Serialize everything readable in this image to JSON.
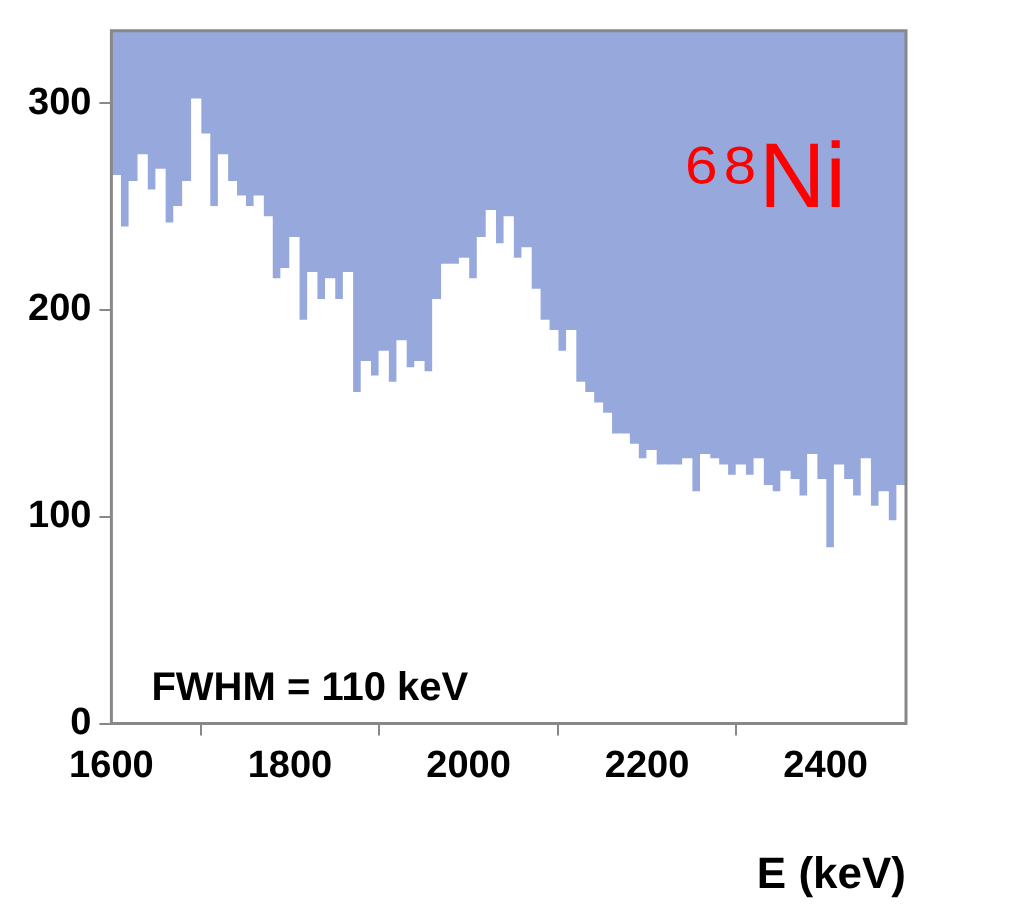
{
  "chart_data": {
    "type": "histogram",
    "bins": [
      1600,
      1610,
      1620,
      1630,
      1640,
      1650,
      1660,
      1670,
      1680,
      1690,
      1700,
      1710,
      1720,
      1730,
      1740,
      1750,
      1760,
      1770,
      1780,
      1790,
      1800,
      1810,
      1820,
      1830,
      1840,
      1850,
      1860,
      1870,
      1880,
      1890,
      1900,
      1910,
      1920,
      1930,
      1940,
      1950,
      1960,
      1970,
      1980,
      1990,
      2000,
      2010,
      2020,
      2030,
      2040,
      2050,
      2060,
      2070,
      2080,
      2090,
      2100,
      2110,
      2120,
      2130,
      2140,
      2150,
      2160,
      2170,
      2180,
      2190,
      2200,
      2210,
      2220,
      2230,
      2240,
      2250,
      2260,
      2270,
      2280,
      2290,
      2300,
      2310,
      2320,
      2330,
      2340,
      2350,
      2360,
      2370,
      2380,
      2390,
      2400,
      2410,
      2420,
      2430,
      2440,
      2450,
      2460,
      2470,
      2480,
      2490
    ],
    "values": [
      265,
      240,
      262,
      275,
      258,
      268,
      242,
      250,
      262,
      302,
      285,
      250,
      275,
      262,
      255,
      250,
      255,
      245,
      215,
      220,
      235,
      195,
      218,
      205,
      215,
      205,
      218,
      160,
      175,
      168,
      180,
      165,
      185,
      172,
      175,
      170,
      205,
      222,
      222,
      225,
      215,
      235,
      248,
      232,
      245,
      225,
      230,
      210,
      195,
      190,
      180,
      190,
      165,
      160,
      155,
      150,
      140,
      140,
      135,
      128,
      132,
      125,
      125,
      125,
      128,
      112,
      130,
      128,
      125,
      120,
      125,
      120,
      128,
      115,
      112,
      122,
      118,
      110,
      130,
      118,
      85,
      125,
      118,
      110,
      128,
      105,
      112,
      98,
      115
    ],
    "color": "#ffffff",
    "xlabel": "E (keV)",
    "xlim": [
      1600,
      2490
    ],
    "xticks": [
      1600,
      1800,
      2000,
      2200,
      2400
    ],
    "ylim": [
      0,
      335
    ],
    "yticks": [
      0,
      100,
      200,
      300
    ],
    "grid": false,
    "annotations": [
      "⁶⁸Ni",
      "FWHM = 110 keV"
    ]
  }
}
